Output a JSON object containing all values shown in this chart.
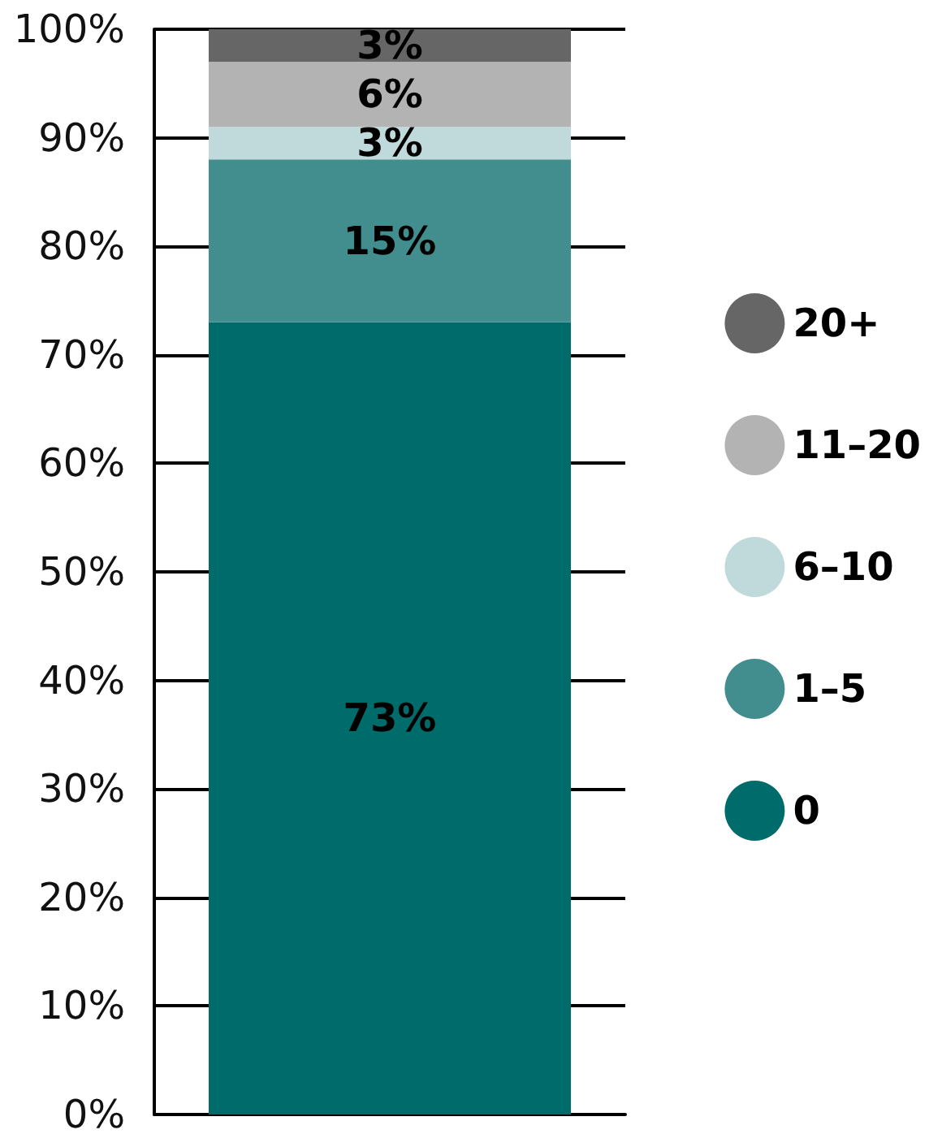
{
  "chart_data": {
    "type": "bar",
    "stacked": true,
    "categories": [
      null
    ],
    "series": [
      {
        "name": "0",
        "color": "#006b6b",
        "values": [
          73
        ],
        "value_labels": [
          "73%"
        ]
      },
      {
        "name": "1–5",
        "color": "#428e8e",
        "values": [
          15
        ],
        "value_labels": [
          "15%"
        ]
      },
      {
        "name": "6–10",
        "color": "#c0dadc",
        "values": [
          3
        ],
        "value_labels": [
          "3%"
        ]
      },
      {
        "name": "11–20",
        "color": "#b3b3b3",
        "values": [
          6
        ],
        "value_labels": [
          "6%"
        ]
      },
      {
        "name": "20+",
        "color": "#666666",
        "values": [
          3
        ],
        "value_labels": [
          "3%"
        ]
      }
    ],
    "ylim": [
      0,
      100
    ],
    "yticks": [
      {
        "value": 0,
        "label": "0%"
      },
      {
        "value": 10,
        "label": "10%"
      },
      {
        "value": 20,
        "label": "20%"
      },
      {
        "value": 30,
        "label": "30%"
      },
      {
        "value": 40,
        "label": "40%"
      },
      {
        "value": 50,
        "label": "50%"
      },
      {
        "value": 60,
        "label": "60%"
      },
      {
        "value": 70,
        "label": "70%"
      },
      {
        "value": 80,
        "label": "80%"
      },
      {
        "value": 90,
        "label": "90%"
      },
      {
        "value": 100,
        "label": "100%"
      }
    ],
    "grid": "y",
    "legend": "right",
    "tick_labels": "y"
  }
}
